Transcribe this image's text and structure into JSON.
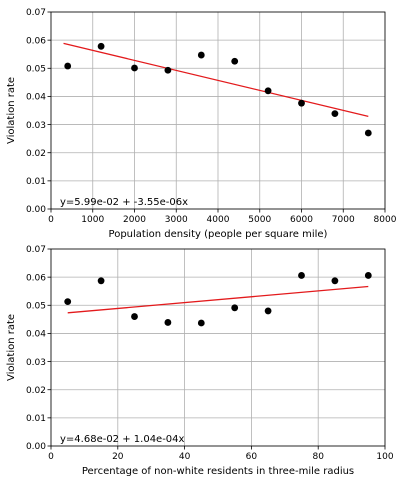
{
  "chart_data": [
    {
      "type": "scatter",
      "xlabel": "Population density (people per square mile)",
      "ylabel": "Violation rate",
      "xlim": [
        0,
        8000
      ],
      "ylim": [
        0,
        0.07
      ],
      "xticks": [
        0,
        1000,
        2000,
        3000,
        4000,
        5000,
        6000,
        7000,
        8000
      ],
      "xtick_labels": [
        "0",
        "1000",
        "2000",
        "3000",
        "4000",
        "5000",
        "6000",
        "7000",
        "8000"
      ],
      "yticks": [
        0,
        0.01,
        0.02,
        0.03,
        0.04,
        0.05,
        0.06,
        0.07
      ],
      "ytick_labels": [
        "0.00",
        "0.01",
        "0.02",
        "0.03",
        "0.04",
        "0.05",
        "0.06",
        "0.07"
      ],
      "grid": true,
      "points": {
        "x": [
          400,
          1200,
          2000,
          2800,
          3600,
          4400,
          5200,
          6000,
          6800,
          7600
        ],
        "y": [
          0.0508,
          0.0578,
          0.0501,
          0.0493,
          0.0547,
          0.0525,
          0.042,
          0.0376,
          0.0339,
          0.027
        ]
      },
      "fit_line": {
        "x": [
          300,
          7600
        ],
        "intercept": 0.0599,
        "slope": -3.55e-06
      },
      "annotation": "y=5.99e-02 + -3.55e-06x",
      "point_color": "#000000",
      "line_color": "#e31a1c"
    },
    {
      "type": "scatter",
      "xlabel": "Percentage of non-white residents in three-mile radius",
      "ylabel": "Violation rate",
      "xlim": [
        0,
        100
      ],
      "ylim": [
        0,
        0.07
      ],
      "xticks": [
        0,
        20,
        40,
        60,
        80,
        100
      ],
      "xtick_labels": [
        "0",
        "20",
        "40",
        "60",
        "80",
        "100"
      ],
      "yticks": [
        0,
        0.01,
        0.02,
        0.03,
        0.04,
        0.05,
        0.06,
        0.07
      ],
      "ytick_labels": [
        "0.00",
        "0.01",
        "0.02",
        "0.03",
        "0.04",
        "0.05",
        "0.06",
        "0.07"
      ],
      "grid": true,
      "points": {
        "x": [
          5,
          15,
          25,
          35,
          45,
          55,
          65,
          75,
          85,
          95
        ],
        "y": [
          0.0513,
          0.0587,
          0.046,
          0.0439,
          0.0437,
          0.0491,
          0.048,
          0.0606,
          0.0587,
          0.0606
        ]
      },
      "fit_line": {
        "x": [
          5,
          95
        ],
        "intercept": 0.0468,
        "slope": 0.000104
      },
      "annotation": "y=4.68e-02 + 1.04e-04x",
      "point_color": "#000000",
      "line_color": "#e31a1c"
    }
  ]
}
